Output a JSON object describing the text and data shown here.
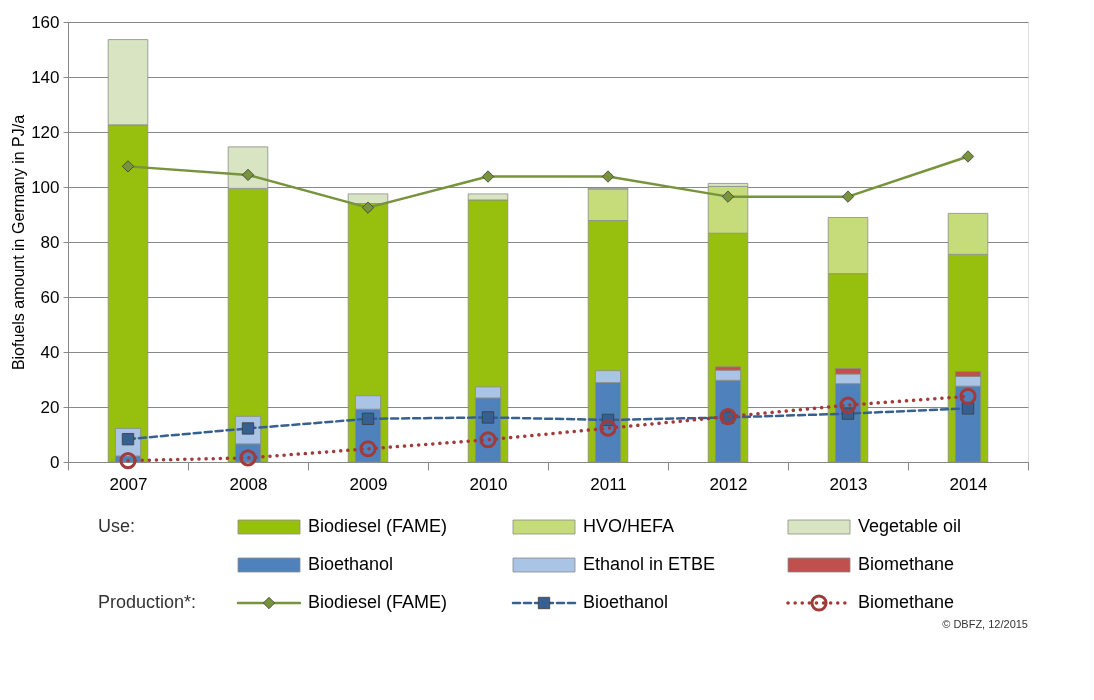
{
  "chart_data": {
    "type": "bar",
    "ylabel": "Biofuels amount in Germany in PJ/a",
    "categories": [
      "2007",
      "2008",
      "2009",
      "2010",
      "2011",
      "2012",
      "2013",
      "2014"
    ],
    "ylim": [
      0,
      160
    ],
    "yticks": [
      0,
      20,
      40,
      60,
      80,
      100,
      120,
      140,
      160
    ],
    "grid": "y",
    "legend": "bottom",
    "series": [
      {
        "name": "Biodiesel (FAME)",
        "color": "#97bf0d",
        "values": [
          122.6,
          99.5,
          94,
          95.3,
          87.8,
          83.2,
          68.5,
          75.5
        ],
        "base": [
          0,
          0,
          0,
          0,
          0,
          0,
          0,
          0
        ]
      },
      {
        "name": "HVO/HEFA",
        "color": "#c6dc7a",
        "values": [
          null,
          null,
          null,
          null,
          11.5,
          17,
          20.4,
          14.9
        ],
        "base": [
          null,
          null,
          null,
          null,
          87.8,
          83.2,
          68.5,
          75.5
        ]
      },
      {
        "name": "Vegetable oil",
        "color": "#d9e4c2",
        "values": [
          31,
          15.1,
          3.5,
          2.2,
          0.3,
          1.1,
          null,
          null
        ],
        "base": [
          122.6,
          99.5,
          94,
          95.3,
          99.3,
          100.2,
          null,
          null
        ]
      },
      {
        "name": "Bioethanol",
        "color": "#4f81bd",
        "values": [
          2.2,
          6.6,
          19.2,
          23.3,
          28.9,
          29.7,
          28.5,
          27.6
        ],
        "base": [
          0,
          0,
          0,
          0,
          0,
          0,
          0,
          0
        ]
      },
      {
        "name": "Ethanol in ETBE",
        "color": "#a9c4e4",
        "values": [
          10,
          10,
          4.9,
          4,
          4.3,
          3.7,
          3.5,
          3.5
        ],
        "base": [
          2.2,
          6.6,
          19.2,
          23.3,
          28.9,
          29.7,
          28.5,
          27.6
        ]
      },
      {
        "name": "Biomethane",
        "color": "#c0504d",
        "values": [
          null,
          null,
          null,
          null,
          null,
          1.2,
          2,
          1.8
        ],
        "base": [
          null,
          null,
          null,
          null,
          null,
          33.4,
          32,
          31.1
        ]
      },
      {
        "name": "Biodiesel (FAME)",
        "type": "line",
        "color": "#77933c",
        "marker": "diamond",
        "line_style": "solid",
        "values": [
          107.5,
          104.4,
          92.5,
          103.8,
          103.8,
          96.5,
          96.5,
          111.1
        ]
      },
      {
        "name": "Bioethanol",
        "type": "line",
        "color": "#376092",
        "marker": "square",
        "line_style": "dashed",
        "values": [
          8.3,
          12.2,
          15.7,
          16.2,
          15.3,
          16.2,
          17.6,
          19.5
        ]
      },
      {
        "name": "Biomethane",
        "type": "line",
        "color": "#a33a3a",
        "marker": "circle",
        "line_style": "dotted",
        "values": [
          0.5,
          1.5,
          4.8,
          8.1,
          12.3,
          16.5,
          20.7,
          23.9
        ]
      }
    ],
    "annotations": [
      "Use:",
      "Production*:",
      "© DBFZ, 12/2015"
    ]
  }
}
